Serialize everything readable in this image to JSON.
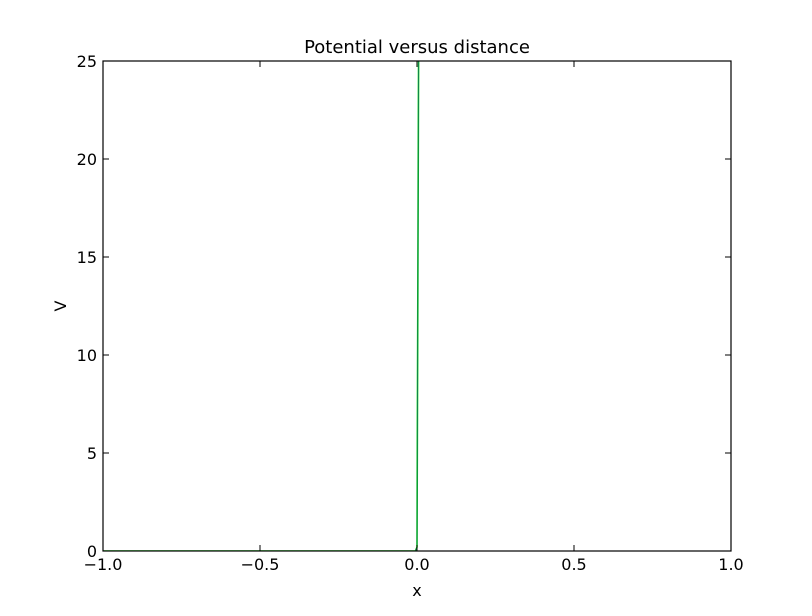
{
  "chart_data": {
    "type": "line",
    "title": "Potential versus distance",
    "xlabel": "x",
    "ylabel": "V",
    "xlim": [
      -1.0,
      1.0
    ],
    "ylim": [
      0,
      25
    ],
    "x_ticks": [
      -1.0,
      -0.5,
      0.0,
      0.5,
      1.0
    ],
    "x_tick_labels": [
      "−1.0",
      "−0.5",
      "0.0",
      "0.5",
      "1.0"
    ],
    "y_ticks": [
      0,
      5,
      10,
      15,
      20,
      25
    ],
    "y_tick_labels": [
      "0",
      "5",
      "10",
      "15",
      "20",
      "25"
    ],
    "grid": false,
    "legend": "none",
    "series": [
      {
        "color": "#00dd00",
        "x": [
          -1.0,
          -0.5,
          -0.005,
          0.0,
          0.005
        ],
        "y": [
          0,
          0,
          0,
          0.2,
          25
        ]
      },
      {
        "color": "#1e3a8a",
        "x": [
          -1.0,
          -0.5,
          -0.005,
          0.0,
          0.005
        ],
        "y": [
          0,
          0,
          0,
          0.2,
          25
        ]
      }
    ]
  }
}
